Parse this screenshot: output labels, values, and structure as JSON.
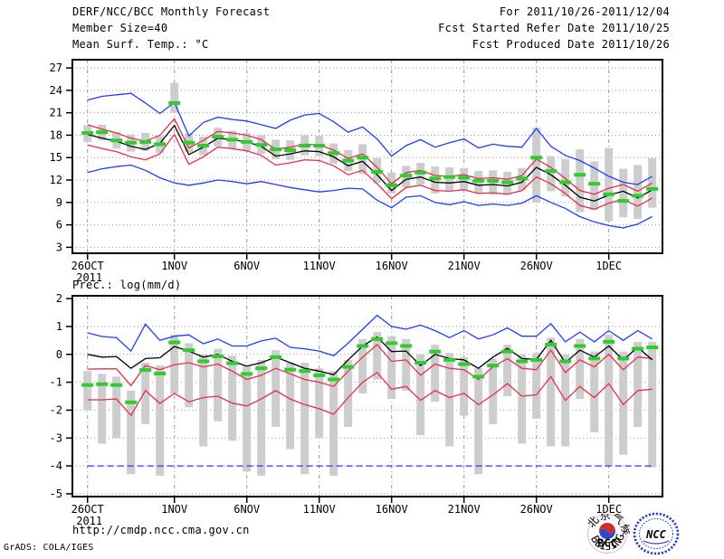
{
  "header": {
    "left": [
      "DERF/NCC/BCC Monthly Forecast",
      "Member Size=40",
      "Mean Surf. Temp.: °C"
    ],
    "right": [
      "For 2011/10/26-2011/12/04",
      "Fcst Started Refer Date 2011/10/25",
      "Fcst Produced Date 2011/10/26"
    ]
  },
  "footer": {
    "url": "http://cmdp.ncc.cma.gov.cn",
    "grads_credit": "GrADS: COLA/IGES",
    "logos": {
      "bcc_label": "BCC",
      "bcc_top_text": "北京气候中心",
      "bcc_bottom_text": "BEIJING CLIMATE CENTER",
      "ncc_label": "NCC"
    }
  },
  "colors": {
    "blue": "#1e3cff",
    "red": "#e62e4c",
    "black": "#000000",
    "green": "#2fcc2f",
    "gray_bar": "#cdcdcd",
    "grid": "#999999",
    "background": "#ffffff"
  },
  "chart_data": [
    {
      "type": "line",
      "title": "Mean Surf. Temp.: °C",
      "x_tick_labels": [
        "26OCT",
        "1NOV",
        "6NOV",
        "11NOV",
        "16NOV",
        "21NOV",
        "26NOV",
        "1DEC"
      ],
      "x_tick_days": [
        0,
        6,
        11,
        16,
        21,
        26,
        31,
        36
      ],
      "x_sub_label": "2011",
      "yticks": [
        3,
        6,
        9,
        12,
        15,
        18,
        21,
        24,
        27
      ],
      "ylim": [
        2.2,
        28.1
      ],
      "grid": true,
      "legend": "none",
      "series": [
        {
          "name": "ensemble-max",
          "color": "blue",
          "values": [
            22.7,
            23.2,
            23.4,
            23.6,
            22.3,
            20.9,
            22.4,
            17.9,
            19.7,
            20.4,
            20.1,
            19.9,
            19.4,
            18.9,
            20.0,
            20.7,
            20.9,
            19.8,
            18.4,
            19.1,
            17.5,
            15.2,
            16.6,
            17.4,
            16.4,
            17.0,
            17.5,
            16.3,
            16.8,
            16.5,
            16.4,
            18.9,
            16.5,
            15.3,
            14.6,
            13.6,
            12.5,
            11.7,
            11.4,
            12.5
          ]
        },
        {
          "name": "ensemble-mean-plus-sd",
          "color": "red",
          "values": [
            19.4,
            18.8,
            18.3,
            17.6,
            17.2,
            18.0,
            20.2,
            16.3,
            17.3,
            18.5,
            18.3,
            18.0,
            17.4,
            16.1,
            16.4,
            16.8,
            16.7,
            16.0,
            14.9,
            15.5,
            13.7,
            11.5,
            13.0,
            13.3,
            12.6,
            12.5,
            12.7,
            12.2,
            12.3,
            12.1,
            12.6,
            14.8,
            13.7,
            12.2,
            10.6,
            10.1,
            10.9,
            11.4,
            10.5,
            11.6
          ]
        },
        {
          "name": "ensemble-mean",
          "color": "black",
          "values": [
            18.1,
            17.6,
            17.2,
            16.5,
            16.1,
            16.9,
            19.3,
            15.4,
            16.4,
            17.6,
            17.4,
            17.1,
            16.5,
            15.2,
            15.5,
            15.9,
            15.8,
            15.1,
            13.9,
            14.5,
            12.7,
            10.6,
            12.1,
            12.4,
            11.7,
            11.6,
            11.8,
            11.3,
            11.4,
            11.2,
            11.7,
            13.7,
            12.7,
            11.3,
            9.7,
            9.2,
            10.0,
            10.5,
            9.6,
            10.7
          ]
        },
        {
          "name": "ensemble-mean-minus-sd",
          "color": "red",
          "values": [
            16.7,
            16.2,
            15.8,
            15.1,
            14.7,
            15.5,
            18.1,
            14.1,
            15.1,
            16.4,
            16.2,
            15.9,
            15.3,
            14.0,
            14.3,
            14.7,
            14.6,
            13.9,
            12.7,
            13.3,
            11.5,
            9.5,
            11.0,
            11.3,
            10.6,
            10.5,
            10.7,
            10.2,
            10.3,
            10.1,
            10.6,
            12.4,
            11.5,
            10.2,
            8.6,
            8.1,
            8.9,
            9.4,
            8.5,
            9.6
          ]
        },
        {
          "name": "ensemble-min",
          "color": "blue",
          "values": [
            13.0,
            13.5,
            13.8,
            14.0,
            13.3,
            12.3,
            11.6,
            11.3,
            11.6,
            12.0,
            11.8,
            11.5,
            11.8,
            11.4,
            11.0,
            10.7,
            10.4,
            10.6,
            10.9,
            10.8,
            9.3,
            8.3,
            9.7,
            9.9,
            9.0,
            8.7,
            9.1,
            8.6,
            8.8,
            8.6,
            8.9,
            9.9,
            9.0,
            8.2,
            7.1,
            6.4,
            5.9,
            5.6,
            6.1,
            7.1
          ]
        }
      ],
      "bars": {
        "name": "climatology-range",
        "low": [
          17.1,
          17.3,
          16.2,
          15.8,
          15.9,
          15.6,
          21.0,
          15.7,
          15.3,
          16.5,
          16.2,
          15.9,
          15.5,
          14.8,
          14.7,
          15.3,
          15.2,
          14.2,
          13.2,
          12.8,
          11.6,
          10.2,
          11.0,
          11.4,
          10.2,
          10.6,
          10.6,
          10.2,
          10.0,
          10.1,
          10.6,
          9.0,
          10.5,
          9.8,
          7.7,
          8.0,
          6.5,
          7.0,
          6.8,
          8.3
        ],
        "high": [
          19.3,
          19.4,
          18.4,
          18.1,
          18.3,
          17.9,
          25.0,
          18.2,
          17.8,
          19.0,
          18.6,
          18.3,
          18.0,
          17.4,
          17.3,
          18.0,
          17.9,
          16.9,
          16.0,
          16.8,
          14.9,
          13.0,
          13.9,
          14.3,
          13.8,
          13.7,
          13.6,
          13.2,
          13.3,
          13.1,
          13.6,
          19.0,
          15.2,
          14.8,
          16.1,
          14.5,
          16.3,
          13.5,
          14.0,
          14.9
        ]
      },
      "dashes": {
        "name": "climatology-mean",
        "color": "green",
        "values": [
          18.3,
          18.4,
          17.3,
          17.0,
          17.1,
          16.8,
          22.3,
          17.0,
          16.6,
          17.8,
          17.4,
          17.1,
          16.7,
          16.1,
          16.0,
          16.6,
          16.6,
          15.6,
          14.6,
          15.0,
          13.1,
          11.3,
          12.6,
          13.0,
          12.2,
          12.4,
          12.3,
          11.9,
          11.9,
          11.7,
          12.2,
          15.0,
          13.2,
          11.7,
          12.7,
          11.5,
          10.1,
          9.2,
          9.9,
          10.8
        ]
      }
    },
    {
      "type": "line",
      "title": "Prec.: log(mm/d)",
      "x_tick_labels": [
        "26OCT",
        "1NOV",
        "6NOV",
        "11NOV",
        "16NOV",
        "21NOV",
        "26NOV",
        "1DEC"
      ],
      "x_tick_days": [
        0,
        6,
        11,
        16,
        21,
        26,
        31,
        36
      ],
      "x_sub_label": "2011",
      "yticks": [
        2,
        1,
        0,
        -1,
        -2,
        -3,
        -4,
        -5
      ],
      "ylim": [
        -5.1,
        2.1
      ],
      "grid": true,
      "legend": "none",
      "series": [
        {
          "name": "ensemble-max",
          "color": "blue",
          "values": [
            0.77,
            0.64,
            0.6,
            0.12,
            1.08,
            0.5,
            0.65,
            0.7,
            0.38,
            0.55,
            0.3,
            0.3,
            0.48,
            0.58,
            0.25,
            0.2,
            0.12,
            -0.05,
            0.4,
            0.9,
            1.4,
            1.0,
            0.9,
            1.05,
            0.85,
            0.6,
            0.85,
            0.55,
            0.7,
            0.95,
            0.65,
            0.65,
            1.1,
            0.45,
            0.8,
            0.45,
            0.85,
            0.5,
            0.85,
            0.55
          ]
        },
        {
          "name": "ensemble-mean-plus-sd",
          "color": "red",
          "values": [
            -0.53,
            -0.52,
            -0.52,
            -1.12,
            -0.4,
            -0.55,
            -0.37,
            -0.3,
            -0.45,
            -0.35,
            -0.6,
            -0.9,
            -0.75,
            -0.5,
            -0.7,
            -0.9,
            -1.0,
            -1.15,
            -0.6,
            -0.1,
            0.35,
            -0.25,
            -0.2,
            -0.75,
            -0.35,
            -0.5,
            -0.55,
            -0.9,
            -0.45,
            -0.15,
            -0.5,
            -0.55,
            0.15,
            -0.65,
            -0.2,
            -0.45,
            0.0,
            -0.55,
            -0.1,
            -0.15
          ]
        },
        {
          "name": "ensemble-mean",
          "color": "black",
          "values": [
            0.0,
            -0.1,
            -0.08,
            -0.5,
            -0.15,
            -0.12,
            0.28,
            0.12,
            -0.1,
            0.0,
            -0.25,
            -0.42,
            -0.3,
            -0.1,
            -0.3,
            -0.5,
            -0.6,
            -0.73,
            -0.2,
            0.3,
            0.62,
            0.1,
            0.12,
            -0.4,
            0.0,
            -0.15,
            -0.2,
            -0.5,
            -0.1,
            0.22,
            -0.15,
            -0.18,
            0.5,
            -0.3,
            0.15,
            -0.1,
            0.3,
            -0.2,
            0.25,
            -0.2
          ]
        },
        {
          "name": "ensemble-mean-minus-sd",
          "color": "red",
          "values": [
            -1.63,
            -1.63,
            -1.6,
            -2.19,
            -1.3,
            -1.76,
            -1.4,
            -1.7,
            -1.55,
            -1.5,
            -1.75,
            -1.85,
            -1.6,
            -1.3,
            -1.6,
            -1.8,
            -1.95,
            -2.15,
            -1.55,
            -1.0,
            -0.65,
            -1.25,
            -1.15,
            -1.65,
            -1.3,
            -1.55,
            -1.4,
            -1.8,
            -1.45,
            -1.05,
            -1.5,
            -1.45,
            -0.8,
            -1.65,
            -1.15,
            -1.55,
            -1.05,
            -1.8,
            -1.3,
            -1.25
          ]
        },
        {
          "name": "ensemble-min",
          "color": "blue",
          "dashed": true,
          "values": [
            -4,
            -4,
            -4,
            -4,
            -4,
            -4,
            -4,
            -4,
            -4,
            -4,
            -4,
            -4,
            -4,
            -4,
            -4,
            -4,
            -4,
            -4,
            -4,
            -4,
            -4,
            -4,
            -4,
            -4,
            -4,
            -4,
            -4,
            -4,
            -4,
            -4,
            -4,
            -4,
            -4,
            -4,
            -4,
            -4,
            -4,
            -4,
            -4,
            -4
          ]
        }
      ],
      "bars": {
        "name": "climatology-range",
        "low": [
          -2.0,
          -3.2,
          -3.0,
          -4.3,
          -2.5,
          -4.35,
          -1.4,
          -1.9,
          -3.3,
          -2.4,
          -3.1,
          -4.2,
          -4.35,
          -2.6,
          -3.4,
          -4.3,
          -3.0,
          -4.35,
          -2.6,
          -1.4,
          -0.9,
          -1.6,
          -1.3,
          -2.9,
          -1.7,
          -3.3,
          -2.2,
          -4.3,
          -2.5,
          -1.5,
          -3.2,
          -2.3,
          -3.3,
          -3.3,
          -1.6,
          -2.8,
          -4.0,
          -3.6,
          -2.6,
          -4.05
        ],
        "high": [
          -0.6,
          -0.7,
          -0.8,
          -1.3,
          -0.3,
          -0.4,
          0.7,
          0.4,
          0.0,
          0.2,
          -0.05,
          -0.4,
          -0.2,
          0.15,
          -0.3,
          -0.3,
          -0.5,
          -0.6,
          -0.2,
          0.55,
          0.8,
          0.65,
          0.55,
          0.0,
          0.35,
          0.05,
          -0.1,
          -0.5,
          -0.15,
          0.35,
          0.0,
          0.05,
          0.6,
          0.0,
          0.55,
          0.1,
          0.7,
          0.1,
          0.45,
          0.45
        ]
      },
      "dashes": {
        "name": "climatology-mean",
        "color": "green",
        "values": [
          -1.1,
          -1.07,
          -1.1,
          -1.72,
          -0.56,
          -0.69,
          0.43,
          0.15,
          -0.25,
          -0.07,
          -0.32,
          -0.7,
          -0.5,
          -0.1,
          -0.55,
          -0.6,
          -0.75,
          -0.9,
          -0.45,
          0.3,
          0.55,
          0.4,
          0.3,
          -0.3,
          0.1,
          -0.2,
          -0.35,
          -0.8,
          -0.4,
          0.1,
          -0.25,
          -0.2,
          0.35,
          -0.25,
          0.3,
          -0.15,
          0.45,
          -0.15,
          0.2,
          0.25
        ]
      }
    }
  ]
}
